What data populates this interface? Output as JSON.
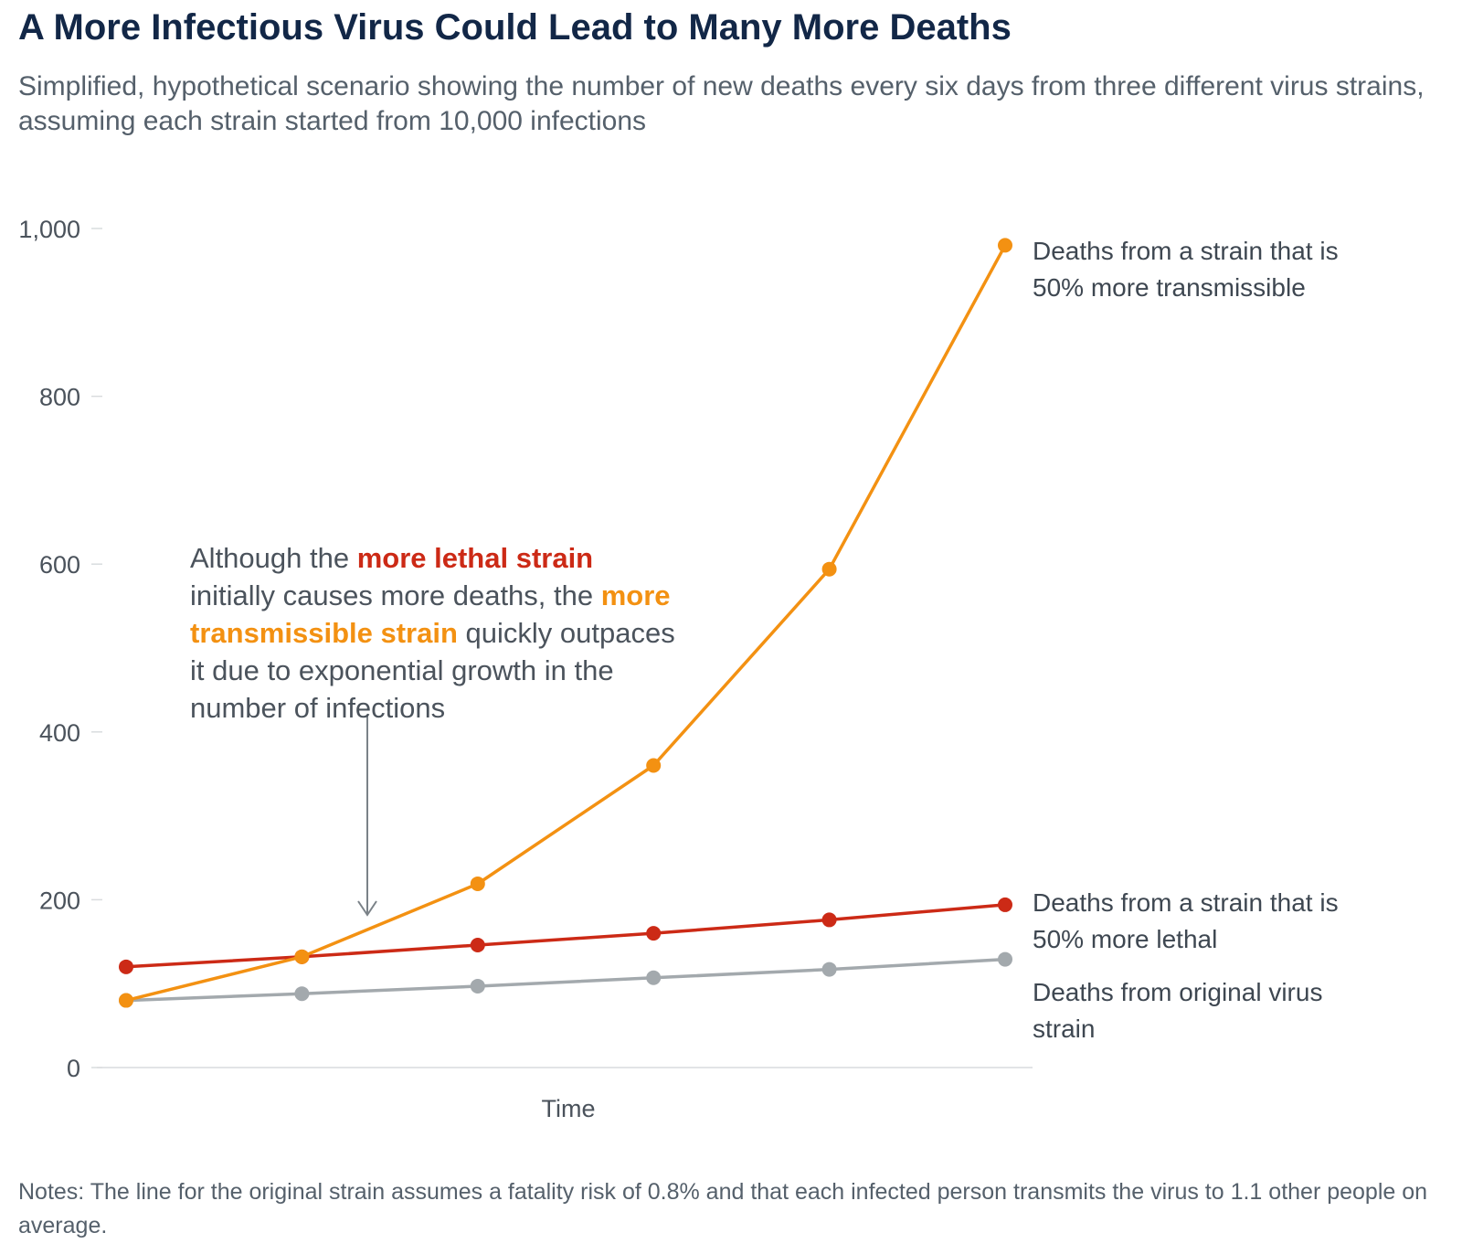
{
  "title": "A More Infectious Virus Could Lead to Many More Deaths",
  "subtitle": "Simplified, hypothetical scenario showing the number of new deaths every six days from three different virus strains, assuming each strain started from 10,000 infections",
  "notes": "Notes: The line for the original strain assumes a fatality risk of 0.8% and that each infected person transmits the virus to 1.1 other people on average.",
  "annotation": {
    "part1": "Although the ",
    "highlight_lethal": "more lethal strain",
    "part2": " initially causes more deaths, the ",
    "highlight_transmissible": "more transmissible strain",
    "part3": " quickly outpaces it due to exponential growth in the number of infections"
  },
  "colors": {
    "transmissible": "#f39112",
    "lethal": "#cc2a16",
    "original": "#a3a9ad",
    "axis": "#d9dcde",
    "arrow": "#7b8288"
  },
  "chart_data": {
    "type": "line",
    "title": "A More Infectious Virus Could Lead to Many More Deaths",
    "xlabel": "Time",
    "ylabel": "",
    "x": [
      1,
      2,
      3,
      4,
      5,
      6
    ],
    "ylim": [
      0,
      1000
    ],
    "yticks": [
      0,
      200,
      400,
      600,
      800,
      1000
    ],
    "ytick_labels": [
      "0",
      "200",
      "400",
      "600",
      "800",
      "1,000"
    ],
    "grid": false,
    "series": [
      {
        "key": "transmissible",
        "name": "Deaths from a strain that is 50% more transmissible",
        "label_lines": [
          "Deaths from a strain that is",
          "50% more transmissible"
        ],
        "values": [
          80,
          132,
          219,
          360,
          594,
          980
        ]
      },
      {
        "key": "lethal",
        "name": "Deaths from a strain that is 50% more lethal",
        "label_lines": [
          "Deaths from a strain that is",
          "50% more lethal"
        ],
        "values": [
          120,
          132,
          146,
          160,
          176,
          194
        ]
      },
      {
        "key": "original",
        "name": "Deaths from original virus strain",
        "label_lines": [
          "Deaths from original virus",
          "strain"
        ],
        "values": [
          80,
          88,
          97,
          107,
          117,
          129
        ]
      }
    ]
  }
}
